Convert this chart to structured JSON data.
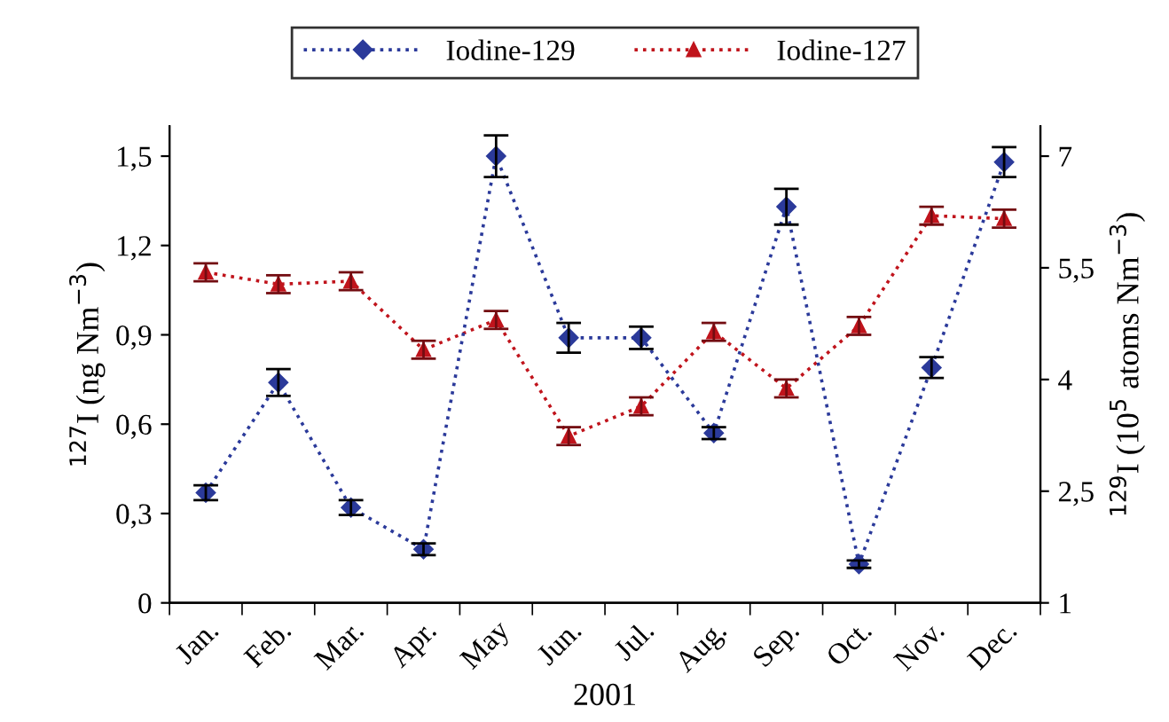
{
  "chart_data": {
    "type": "line",
    "xlabel": "2001",
    "ylabel": "$^{127}$I (ng Nm$^{−3}$)",
    "y2label": "$^{129}$I (10$^{5}$ atoms Nm$^{−3}$)",
    "categories": [
      "Jan.",
      "Feb.",
      "Mar.",
      "Apr.",
      "May",
      "Jun.",
      "Jul.",
      "Aug.",
      "Sep.",
      "Oct.",
      "Nov.",
      "Dec."
    ],
    "series": [
      {
        "name": "Iodine-129",
        "color": "#2b3a9a",
        "axis": "y2",
        "marker": "diamond",
        "values": [
          2.48,
          3.96,
          2.28,
          1.72,
          7.0,
          4.56,
          4.56,
          3.28,
          6.32,
          1.52,
          4.16,
          6.92
        ],
        "errors": [
          0.1,
          0.18,
          0.1,
          0.08,
          0.28,
          0.2,
          0.15,
          0.08,
          0.24,
          0.05,
          0.14,
          0.2
        ]
      },
      {
        "name": "Iodine-127",
        "color": "#c0141c",
        "marker": "triangle",
        "values": [
          1.11,
          1.07,
          1.08,
          0.85,
          0.95,
          0.56,
          0.66,
          0.91,
          0.72,
          0.93,
          1.3,
          1.29
        ],
        "errors": [
          0.03,
          0.03,
          0.03,
          0.03,
          0.03,
          0.03,
          0.03,
          0.03,
          0.03,
          0.03,
          0.03,
          0.03
        ]
      }
    ],
    "line_style": "dotted",
    "legend": "top",
    "grid": false,
    "ylim": [
      0,
      1.6
    ],
    "yticks": [
      0,
      {
        "value": 0.3,
        "label": "0,3"
      },
      {
        "value": 0.6,
        "label": "0,6"
      },
      {
        "value": 0.9,
        "label": "0,9"
      },
      {
        "value": 1.2,
        "label": "1,2"
      },
      {
        "value": 1.5,
        "label": "1,5"
      }
    ],
    "y2lim": [
      1,
      7.4
    ],
    "y2ticks": [
      1,
      {
        "value": 2.5,
        "label": "2,5"
      },
      4,
      {
        "value": 5.5,
        "label": "5,5"
      },
      7
    ]
  }
}
